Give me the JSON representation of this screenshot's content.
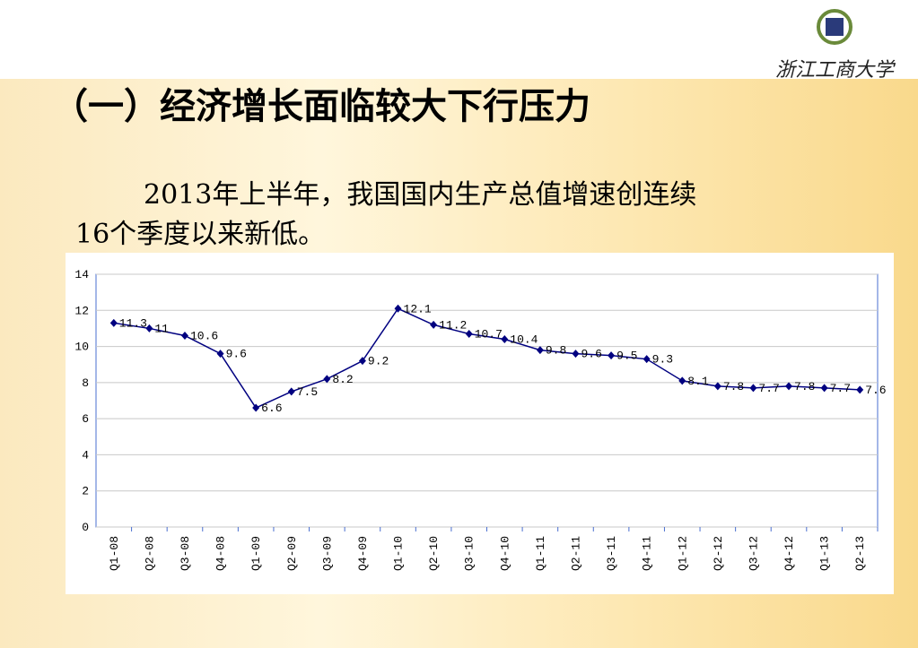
{
  "logo_text": "浙江工商大学",
  "heading": "（一）经济增长面临较大下行压力",
  "body": [
    "2013年上半年，我国国内生产总值增速创连续",
    "16个季度以来新低。"
  ],
  "chart_data": {
    "type": "line",
    "categories": [
      "Q1-08",
      "Q2-08",
      "Q3-08",
      "Q4-08",
      "Q1-09",
      "Q2-09",
      "Q3-09",
      "Q4-09",
      "Q1-10",
      "Q2-10",
      "Q3-10",
      "Q4-10",
      "Q1-11",
      "Q2-11",
      "Q3-11",
      "Q4-11",
      "Q1-12",
      "Q2-12",
      "Q3-12",
      "Q4-12",
      "Q1-13",
      "Q2-13"
    ],
    "values": [
      11.3,
      11,
      10.6,
      9.6,
      6.6,
      7.5,
      8.2,
      9.2,
      12.1,
      11.2,
      10.7,
      10.4,
      9.8,
      9.6,
      9.5,
      9.3,
      8.1,
      7.8,
      7.7,
      7.8,
      7.7,
      7.6
    ],
    "color": "#000080",
    "ylim": [
      0,
      14
    ],
    "yticks": [
      0,
      2,
      4,
      6,
      8,
      10,
      12,
      14
    ],
    "grid": true
  }
}
